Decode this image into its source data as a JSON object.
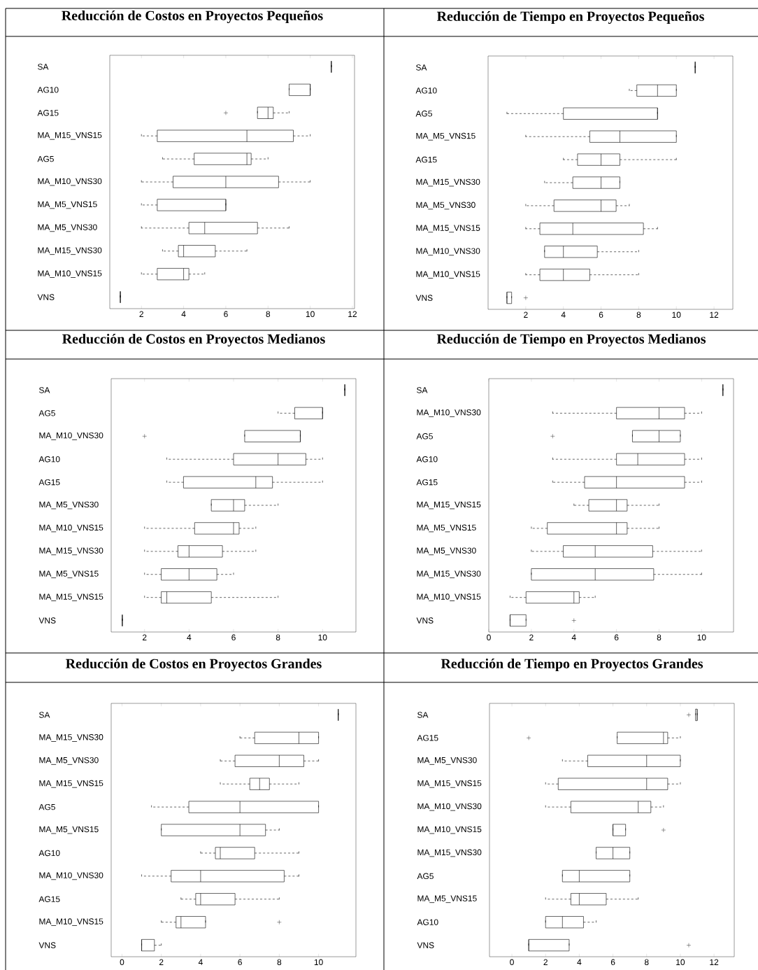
{
  "chart_data": [
    {
      "type": "box",
      "orientation": "horizontal",
      "title": "Reducción de Costos en Proyectos Pequeños",
      "categories": [
        "SA",
        "AG10",
        "AG15",
        "MA_M15_VNS15",
        "AG5",
        "MA_M10_VNS30",
        "MA_M5_VNS15",
        "MA_M5_VNS30",
        "MA_M15_VNS30",
        "MA_M10_VNS15",
        "VNS"
      ],
      "boxes": [
        {
          "low": 11,
          "q1": 11,
          "median": 11,
          "q3": 11,
          "high": 11
        },
        {
          "low": 9,
          "q1": 9,
          "median": 10,
          "q3": 10,
          "high": 10
        },
        {
          "low": 7.5,
          "q1": 7.5,
          "median": 8,
          "q3": 8.25,
          "high": 9,
          "outliers": [
            6
          ]
        },
        {
          "low": 2,
          "q1": 2.75,
          "median": 7,
          "q3": 9.2,
          "high": 10
        },
        {
          "low": 3,
          "q1": 4.5,
          "median": 7,
          "q3": 7.2,
          "high": 8
        },
        {
          "low": 2,
          "q1": 3.5,
          "median": 6,
          "q3": 8.5,
          "high": 10
        },
        {
          "low": 2,
          "q1": 2.75,
          "median": 6,
          "q3": 6,
          "high": 6
        },
        {
          "low": 2,
          "q1": 4.25,
          "median": 5,
          "q3": 7.5,
          "high": 9
        },
        {
          "low": 3,
          "q1": 3.75,
          "median": 4,
          "q3": 5.5,
          "high": 7
        },
        {
          "low": 2,
          "q1": 2.75,
          "median": 4,
          "q3": 4.25,
          "high": 5
        },
        {
          "low": 1,
          "q1": 1,
          "median": 1,
          "q3": 1,
          "high": 1
        }
      ],
      "xlim": [
        0.5,
        12.1
      ],
      "xticks": [
        2,
        4,
        6,
        8,
        10,
        12
      ]
    },
    {
      "type": "box",
      "orientation": "horizontal",
      "title": "Reducción de Tiempo en Proyectos Pequeños",
      "categories": [
        "SA",
        "AG10",
        "AG5",
        "MA_M5_VNS15",
        "AG15",
        "MA_M15_VNS30",
        "MA_M5_VNS30",
        "MA_M15_VNS15",
        "MA_M10_VNS30",
        "MA_M10_VNS15",
        "VNS"
      ],
      "boxes": [
        {
          "low": 11,
          "q1": 11,
          "median": 11,
          "q3": 11,
          "high": 11
        },
        {
          "low": 7.5,
          "q1": 7.9,
          "median": 9,
          "q3": 10,
          "high": 10
        },
        {
          "low": 1,
          "q1": 4,
          "median": 9,
          "q3": 9,
          "high": 9
        },
        {
          "low": 2,
          "q1": 5.4,
          "median": 7,
          "q3": 10,
          "high": 10
        },
        {
          "low": 4,
          "q1": 4.75,
          "median": 6,
          "q3": 7,
          "high": 10
        },
        {
          "low": 3,
          "q1": 4.5,
          "median": 6,
          "q3": 7,
          "high": 7
        },
        {
          "low": 2,
          "q1": 3.5,
          "median": 6,
          "q3": 6.8,
          "high": 7.5
        },
        {
          "low": 2,
          "q1": 2.75,
          "median": 4.5,
          "q3": 8.25,
          "high": 9
        },
        {
          "low": 3,
          "q1": 3,
          "median": 4,
          "q3": 5.8,
          "high": 8
        },
        {
          "low": 2,
          "q1": 2.75,
          "median": 4,
          "q3": 5.4,
          "high": 8
        },
        {
          "low": 1,
          "q1": 1,
          "median": 1,
          "q3": 1.25,
          "high": 1.25,
          "outliers": [
            2
          ]
        }
      ],
      "xlim": [
        0,
        13
      ],
      "xticks": [
        2,
        4,
        6,
        8,
        10,
        12
      ]
    },
    {
      "type": "box",
      "orientation": "horizontal",
      "title": "Reducción de Costos en Proyectos Medianos",
      "categories": [
        "SA",
        "AG5",
        "MA_M10_VNS30",
        "AG10",
        "AG15",
        "MA_M5_VNS30",
        "MA_M10_VNS15",
        "MA_M15_VNS30",
        "MA_M5_VNS15",
        "MA_M15_VNS15",
        "VNS"
      ],
      "boxes": [
        {
          "low": 11,
          "q1": 11,
          "median": 11,
          "q3": 11,
          "high": 11
        },
        {
          "low": 8,
          "q1": 8.75,
          "median": 10,
          "q3": 10,
          "high": 10
        },
        {
          "low": 6.5,
          "q1": 6.5,
          "median": 9,
          "q3": 9,
          "high": 9,
          "outliers": [
            2
          ]
        },
        {
          "low": 3,
          "q1": 6,
          "median": 8,
          "q3": 9.25,
          "high": 10
        },
        {
          "low": 3,
          "q1": 3.75,
          "median": 7,
          "q3": 7.75,
          "high": 10
        },
        {
          "low": 5,
          "q1": 5,
          "median": 6,
          "q3": 6.5,
          "high": 8
        },
        {
          "low": 2,
          "q1": 4.25,
          "median": 6,
          "q3": 6.25,
          "high": 7
        },
        {
          "low": 2,
          "q1": 3.5,
          "median": 4,
          "q3": 5.5,
          "high": 7
        },
        {
          "low": 2,
          "q1": 2.75,
          "median": 4,
          "q3": 5.25,
          "high": 6
        },
        {
          "low": 2,
          "q1": 2.75,
          "median": 3,
          "q3": 5,
          "high": 8
        },
        {
          "low": 1,
          "q1": 1,
          "median": 1,
          "q3": 1,
          "high": 1
        }
      ],
      "xlim": [
        0.5,
        11.5
      ],
      "xticks": [
        2,
        4,
        6,
        8,
        10
      ]
    },
    {
      "type": "box",
      "orientation": "horizontal",
      "title": "Reducción de Tiempo en Proyectos Medianos",
      "categories": [
        "SA",
        "MA_M10_VNS30",
        "AG5",
        "AG10",
        "AG15",
        "MA_M15_VNS15",
        "MA_M5_VNS15",
        "MA_M5_VNS30",
        "MA_M15_VNS30",
        "MA_M10_VNS15",
        "VNS"
      ],
      "boxes": [
        {
          "low": 11,
          "q1": 11,
          "median": 11,
          "q3": 11,
          "high": 11
        },
        {
          "low": 3,
          "q1": 6,
          "median": 8,
          "q3": 9.2,
          "high": 10
        },
        {
          "low": 6.75,
          "q1": 6.75,
          "median": 8,
          "q3": 9,
          "high": 9,
          "outliers": [
            3
          ]
        },
        {
          "low": 3,
          "q1": 6,
          "median": 7,
          "q3": 9.2,
          "high": 10
        },
        {
          "low": 3,
          "q1": 4.5,
          "median": 6,
          "q3": 9.2,
          "high": 10
        },
        {
          "low": 4,
          "q1": 4.7,
          "median": 6,
          "q3": 6.5,
          "high": 8
        },
        {
          "low": 2,
          "q1": 2.75,
          "median": 6,
          "q3": 6.5,
          "high": 8
        },
        {
          "low": 2,
          "q1": 3.5,
          "median": 5,
          "q3": 7.7,
          "high": 10
        },
        {
          "low": 2,
          "q1": 2,
          "median": 5,
          "q3": 7.75,
          "high": 10
        },
        {
          "low": 1,
          "q1": 1.75,
          "median": 4,
          "q3": 4.25,
          "high": 5
        },
        {
          "low": 1,
          "q1": 1,
          "median": 1,
          "q3": 1.75,
          "high": 1.75,
          "outliers": [
            4
          ]
        }
      ],
      "xlim": [
        0,
        11.5
      ],
      "xticks": [
        0,
        2,
        4,
        6,
        8,
        10
      ]
    },
    {
      "type": "box",
      "orientation": "horizontal",
      "title": "Reducción de Costos en Proyectos Grandes",
      "categories": [
        "SA",
        "MA_M15_VNS30",
        "MA_M5_VNS30",
        "MA_M15_VNS15",
        "AG5",
        "MA_M5_VNS15",
        "AG10",
        "MA_M10_VNS30",
        "AG15",
        "MA_M10_VNS15",
        "VNS"
      ],
      "boxes": [
        {
          "low": 11,
          "q1": 11,
          "median": 11,
          "q3": 11,
          "high": 11
        },
        {
          "low": 6,
          "q1": 6.75,
          "median": 9,
          "q3": 10,
          "high": 10
        },
        {
          "low": 5,
          "q1": 5.75,
          "median": 8,
          "q3": 9.25,
          "high": 10
        },
        {
          "low": 5,
          "q1": 6.5,
          "median": 7,
          "q3": 7.5,
          "high": 9
        },
        {
          "low": 1.5,
          "q1": 3.4,
          "median": 6,
          "q3": 10,
          "high": 10
        },
        {
          "low": 2,
          "q1": 2,
          "median": 6,
          "q3": 7.3,
          "high": 8
        },
        {
          "low": 4,
          "q1": 4.75,
          "median": 5,
          "q3": 6.75,
          "high": 9
        },
        {
          "low": 1,
          "q1": 2.5,
          "median": 4,
          "q3": 8.25,
          "high": 9
        },
        {
          "low": 3,
          "q1": 3.75,
          "median": 4,
          "q3": 5.75,
          "high": 8
        },
        {
          "low": 2,
          "q1": 2.75,
          "median": 3,
          "q3": 4.25,
          "high": 4.25,
          "outliers": [
            8
          ]
        },
        {
          "low": 1,
          "q1": 1,
          "median": 1,
          "q3": 1.65,
          "high": 2
        }
      ],
      "xlim": [
        -0.55,
        11.9
      ],
      "xticks": [
        0,
        2,
        4,
        6,
        8,
        10
      ]
    },
    {
      "type": "box",
      "orientation": "horizontal",
      "title": "Reducción de Tiempo en Proyectos Grandes",
      "categories": [
        "SA",
        "AG15",
        "MA_M5_VNS30",
        "MA_M15_VNS15",
        "MA_M10_VNS30",
        "MA_M10_VNS15",
        "MA_M15_VNS30",
        "AG5",
        "MA_M5_VNS15",
        "AG10",
        "VNS"
      ],
      "boxes": [
        {
          "low": 10.9,
          "q1": 10.9,
          "median": 11,
          "q3": 11,
          "high": 11,
          "outliers": [
            10.5
          ]
        },
        {
          "low": 6.25,
          "q1": 6.25,
          "median": 9,
          "q3": 9.25,
          "high": 10,
          "outliers": [
            1
          ]
        },
        {
          "low": 3,
          "q1": 4.5,
          "median": 8,
          "q3": 10,
          "high": 10
        },
        {
          "low": 2,
          "q1": 2.75,
          "median": 8,
          "q3": 9.25,
          "high": 10
        },
        {
          "low": 2,
          "q1": 3.5,
          "median": 7.5,
          "q3": 8.25,
          "high": 9
        },
        {
          "low": 6,
          "q1": 6,
          "median": 6,
          "q3": 6.75,
          "high": 6.75,
          "outliers": [
            9
          ]
        },
        {
          "low": 5,
          "q1": 5,
          "median": 6,
          "q3": 7,
          "high": 7
        },
        {
          "low": 3,
          "q1": 3,
          "median": 4,
          "q3": 7,
          "high": 7
        },
        {
          "low": 2,
          "q1": 3.5,
          "median": 4,
          "q3": 5.6,
          "high": 7.5
        },
        {
          "low": 2,
          "q1": 2,
          "median": 3,
          "q3": 4.25,
          "high": 5
        },
        {
          "low": 1,
          "q1": 1,
          "median": 1,
          "q3": 3.4,
          "high": 3.4,
          "outliers": [
            10.5
          ]
        }
      ],
      "xlim": [
        -1.33,
        13.2
      ],
      "xticks": [
        0,
        2,
        4,
        6,
        8,
        10,
        12
      ]
    }
  ]
}
